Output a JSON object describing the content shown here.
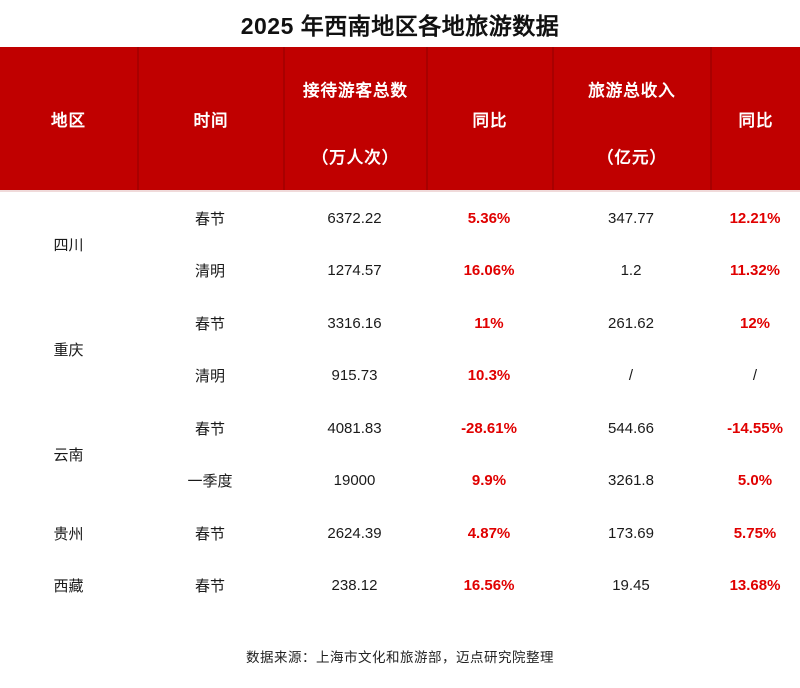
{
  "title": "2025 年西南地区各地旅游数据",
  "colors": {
    "header_bg": "#c00000",
    "header_divider": "#a80000",
    "accent_red": "#e00000"
  },
  "header": {
    "region": "地区",
    "time": "时间",
    "visitors_line1": "接待游客总数",
    "visitors_line2": "（万人次）",
    "visitors_yoy": "同比",
    "revenue_line1": "旅游总收入",
    "revenue_line2": "（亿元）",
    "revenue_yoy": "同比"
  },
  "regions": [
    {
      "name": "四川",
      "rows": [
        {
          "time": "春节",
          "visitors": "6372.22",
          "visitors_yoy": "5.36%",
          "revenue": "347.77",
          "revenue_yoy": "12.21%"
        },
        {
          "time": "清明",
          "visitors": "1274.57",
          "visitors_yoy": "16.06%",
          "revenue": "1.2",
          "revenue_yoy": "11.32%"
        }
      ]
    },
    {
      "name": "重庆",
      "rows": [
        {
          "time": "春节",
          "visitors": "3316.16",
          "visitors_yoy": "11%",
          "revenue": "261.62",
          "revenue_yoy": "12%"
        },
        {
          "time": "清明",
          "visitors": "915.73",
          "visitors_yoy": "10.3%",
          "revenue": "/",
          "revenue_yoy": "/"
        }
      ]
    },
    {
      "name": "云南",
      "rows": [
        {
          "time": "春节",
          "visitors": "4081.83",
          "visitors_yoy": "-28.61%",
          "revenue": "544.66",
          "revenue_yoy": "-14.55%"
        },
        {
          "time": "一季度",
          "visitors": "19000",
          "visitors_yoy": "9.9%",
          "revenue": "3261.8",
          "revenue_yoy": "5.0%"
        }
      ]
    },
    {
      "name": "贵州",
      "rows": [
        {
          "time": "春节",
          "visitors": "2624.39",
          "visitors_yoy": "4.87%",
          "revenue": "173.69",
          "revenue_yoy": "5.75%"
        }
      ]
    },
    {
      "name": "西藏",
      "rows": [
        {
          "time": "春节",
          "visitors": "238.12",
          "visitors_yoy": "16.56%",
          "revenue": "19.45",
          "revenue_yoy": "13.68%"
        }
      ]
    }
  ],
  "footer": "数据来源：上海市文化和旅游部，迈点研究院整理"
}
